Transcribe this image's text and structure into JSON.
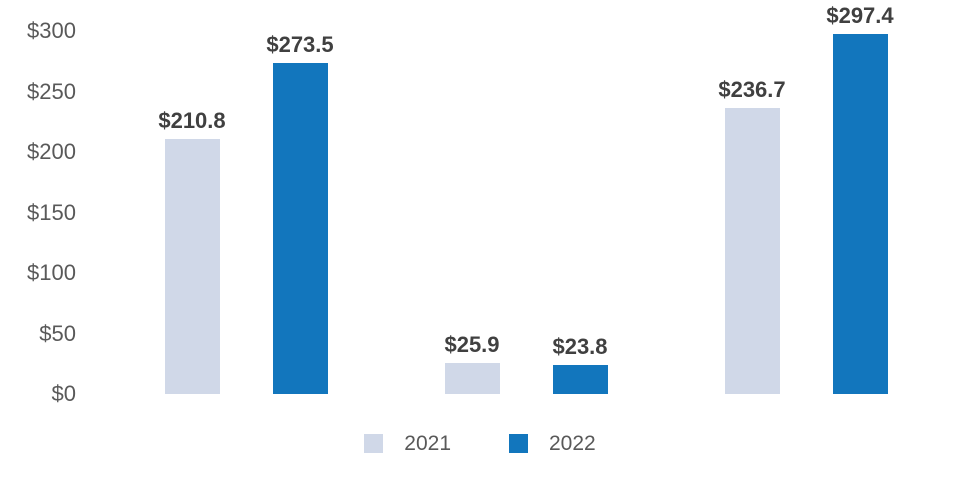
{
  "chart_data": {
    "type": "bar",
    "title": "",
    "categories": [
      "",
      "",
      ""
    ],
    "series": [
      {
        "name": "2021",
        "color": "#d0d8e8",
        "values": [
          210.8,
          25.9,
          236.7
        ],
        "data_labels": [
          "$210.8",
          "$25.9",
          "$236.7"
        ]
      },
      {
        "name": "2022",
        "color": "#1276bd",
        "values": [
          273.5,
          23.8,
          297.4
        ],
        "data_labels": [
          "$273.5",
          "$23.8",
          "$297.4"
        ]
      }
    ],
    "y_axis": {
      "min": 0,
      "max": 300,
      "tick_values": [
        0,
        50,
        100,
        150,
        200,
        250,
        300
      ],
      "tick_labels": [
        "$0",
        "$50",
        "$100",
        "$150",
        "$200",
        "$250",
        "$300"
      ]
    },
    "grid": false,
    "legend_position": "bottom"
  },
  "styles": {
    "background": "#ffffff",
    "axis_label_color": "#595959",
    "data_label_color": "#404040",
    "series_colors": [
      "#d0d8e8",
      "#1276bd"
    ]
  }
}
